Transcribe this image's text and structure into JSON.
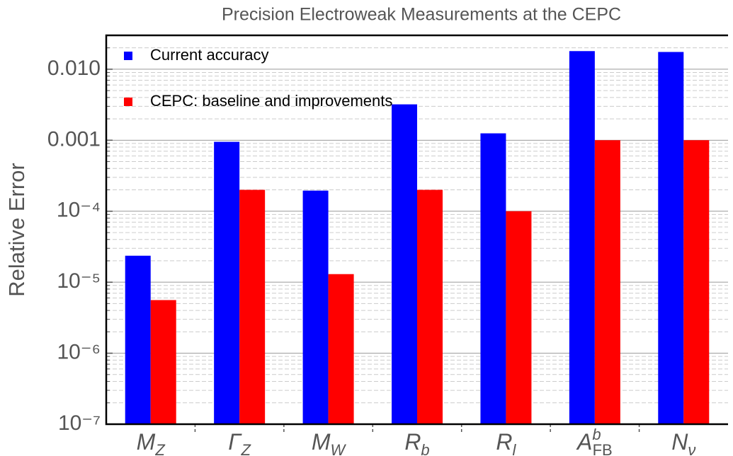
{
  "chart_data": {
    "type": "bar",
    "title": "Precision Electroweak Measurements at the CEPC",
    "ylabel": "Relative Error",
    "log_scale": true,
    "grid": true,
    "legend": "upper left",
    "categories": [
      {
        "base": "M",
        "sub": "Z"
      },
      {
        "base": "Γ",
        "sub": "Z"
      },
      {
        "base": "M",
        "sub": "W"
      },
      {
        "base": "R",
        "sub": "b"
      },
      {
        "base": "R",
        "sub": "l"
      },
      {
        "base": "A",
        "sup": "b",
        "sub": "FB"
      },
      {
        "base": "N",
        "sub": "ν"
      }
    ],
    "series": [
      {
        "name": "Current accuracy",
        "color": "#0000ff",
        "values": [
          2.36e-05,
          0.00095,
          0.000195,
          0.0032,
          0.00125,
          0.018,
          0.0175
        ]
      },
      {
        "name": "CEPC: baseline and improvements",
        "color": "#ff0000",
        "values": [
          5.6e-06,
          0.0002,
          1.3e-05,
          0.0002,
          0.0001,
          0.001,
          0.001
        ]
      }
    ],
    "ylim": [
      1e-07,
      0.03
    ],
    "yticks": [
      {
        "value": 1e-07,
        "label": "10⁻⁷"
      },
      {
        "value": 1e-06,
        "label": "10⁻⁶"
      },
      {
        "value": 1e-05,
        "label": "10⁻⁵"
      },
      {
        "value": 0.0001,
        "label": "10⁻⁴"
      },
      0.001,
      {
        "value": 0.01,
        "label": "0.010"
      }
    ],
    "minor_yticks": [
      2e-07,
      3e-07,
      4e-07,
      5e-07,
      6e-07,
      7e-07,
      8e-07,
      9e-07,
      2e-06,
      3e-06,
      4e-06,
      5e-06,
      6e-06,
      7e-06,
      8e-06,
      9e-06,
      2e-05,
      3e-05,
      4e-05,
      5e-05,
      6e-05,
      7e-05,
      8e-05,
      9e-05,
      0.0002,
      0.0003,
      0.0004,
      0.0005,
      0.0006,
      0.0007,
      0.0008,
      0.0009,
      0.002,
      0.003,
      0.004,
      0.005,
      0.006,
      0.007,
      0.008,
      0.009,
      0.02,
      0.03
    ]
  }
}
